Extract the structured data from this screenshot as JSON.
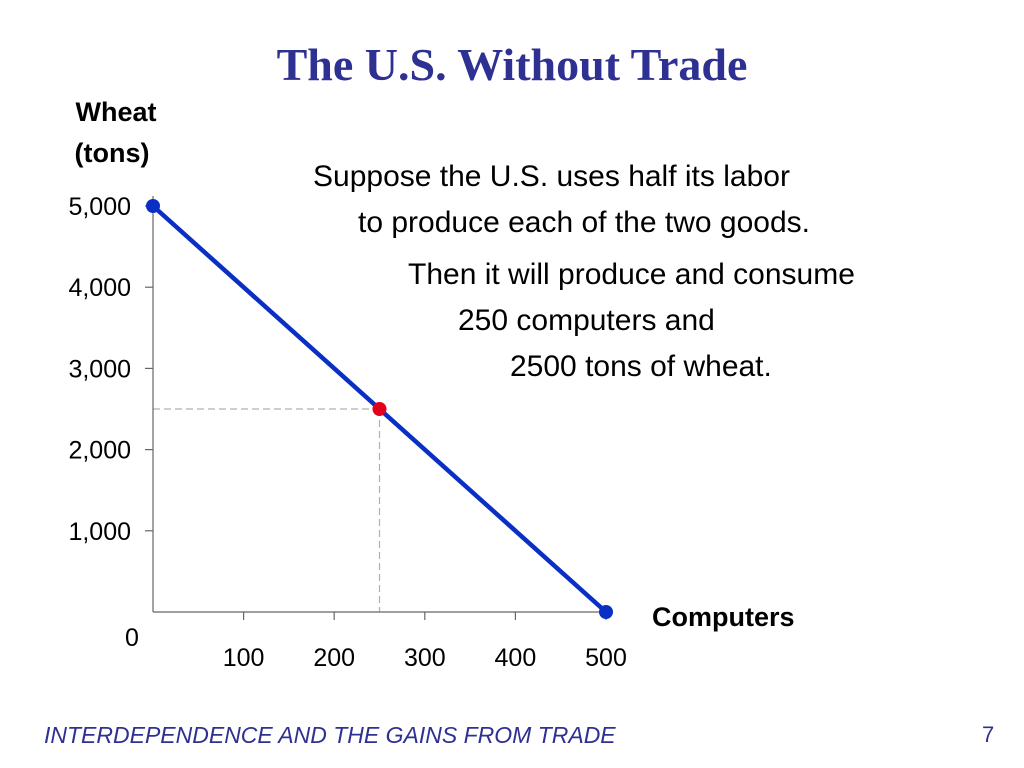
{
  "slide": {
    "title": "The U.S. Without Trade",
    "footer": "INTERDEPENDENCE AND THE GAINS FROM TRADE",
    "page_number": "7"
  },
  "callout": {
    "line1": "Suppose the U.S. uses half its labor",
    "line2": "to produce each of the two goods.",
    "line3": "Then it will produce and consume",
    "line4": "250 computers  and",
    "line5": "2500 tons of wheat."
  },
  "chart_data": {
    "type": "line",
    "title": "The U.S. Without Trade",
    "ylabel": [
      "Wheat",
      "(tons)"
    ],
    "xlabel": "Computers",
    "xlim": [
      0,
      500
    ],
    "ylim": [
      0,
      5000
    ],
    "x_ticks": [
      100,
      200,
      300,
      400,
      500
    ],
    "x_tick_labels": [
      "100",
      "200",
      "300",
      "400",
      "500"
    ],
    "y_ticks": [
      1000,
      2000,
      3000,
      4000,
      5000
    ],
    "y_tick_labels": [
      "1,000",
      "2,000",
      "3,000",
      "4,000",
      "5,000"
    ],
    "origin_label": "0",
    "series": [
      {
        "points": [
          [
            0,
            5000
          ],
          [
            500,
            0
          ]
        ]
      }
    ],
    "highlight_point": {
      "x": 250,
      "y": 2500
    },
    "grid": false,
    "colors": {
      "line": "#0a2fc4",
      "endpoint": "#0a2fc4",
      "highlight": "#e3001b",
      "guide": "#b0b0b0"
    }
  }
}
